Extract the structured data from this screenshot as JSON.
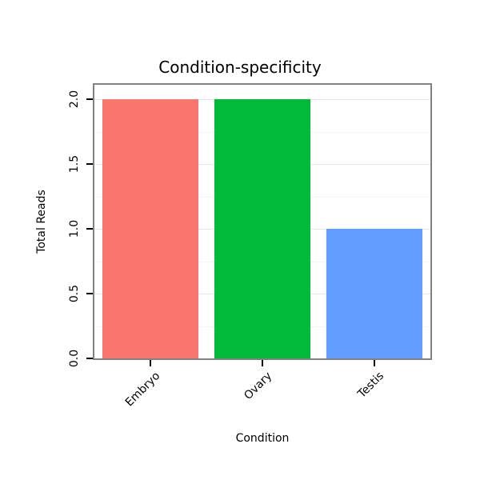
{
  "chart_data": {
    "type": "bar",
    "title": "Condition-specificity",
    "xlabel": "Condition",
    "ylabel": "Total Reads",
    "categories": [
      "Embryo",
      "Ovary",
      "Testis"
    ],
    "values": [
      2,
      2,
      1
    ],
    "series": [
      {
        "name": "Total Reads",
        "values": [
          2,
          2,
          1
        ]
      }
    ],
    "bar_colors": [
      "#F8766D",
      "#00BA38",
      "#619CFF"
    ],
    "ylim": [
      0,
      2
    ],
    "ytick_labels": [
      "0.0",
      "0.5",
      "1.0",
      "1.5",
      "2.0"
    ],
    "grid": "faint-horizontal",
    "legend_position": "none",
    "frame_color": "#828282",
    "background_color": "#ffffff"
  }
}
